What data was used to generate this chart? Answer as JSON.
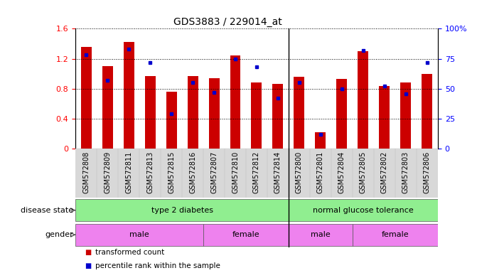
{
  "title": "GDS3883 / 229014_at",
  "samples": [
    "GSM572808",
    "GSM572809",
    "GSM572811",
    "GSM572813",
    "GSM572815",
    "GSM572816",
    "GSM572807",
    "GSM572810",
    "GSM572812",
    "GSM572814",
    "GSM572800",
    "GSM572801",
    "GSM572804",
    "GSM572805",
    "GSM572802",
    "GSM572803",
    "GSM572806"
  ],
  "red_values": [
    1.36,
    1.1,
    1.42,
    0.97,
    0.76,
    0.97,
    0.94,
    1.24,
    0.88,
    0.86,
    0.96,
    0.22,
    0.93,
    1.3,
    0.84,
    0.88,
    1.0
  ],
  "blue_values_pct": [
    78,
    57,
    83,
    72,
    29,
    55,
    47,
    75,
    68,
    42,
    55,
    12,
    50,
    82,
    52,
    46,
    72
  ],
  "ylim_left": [
    0,
    1.6
  ],
  "ylim_right": [
    0,
    100
  ],
  "yticks_left": [
    0,
    0.4,
    0.8,
    1.2,
    1.6
  ],
  "yticks_left_labels": [
    "0",
    "0.4",
    "0.8",
    "1.2",
    "1.6"
  ],
  "yticks_right": [
    0,
    25,
    50,
    75,
    100
  ],
  "yticks_right_labels": [
    "0",
    "25",
    "50",
    "75",
    "100%"
  ],
  "bar_color": "#CC0000",
  "dot_color": "#0000CC",
  "xtick_bg": "#d8d8d8",
  "disease_color": "#90EE90",
  "gender_color": "#EE82EE",
  "legend_items": [
    "transformed count",
    "percentile rank within the sample"
  ],
  "disease_label": "disease state",
  "gender_label": "gender",
  "separator_idx": 10,
  "disease_groups": [
    {
      "label": "type 2 diabetes",
      "start": 0,
      "end": 10
    },
    {
      "label": "normal glucose tolerance",
      "start": 10,
      "end": 17
    }
  ],
  "gender_groups": [
    {
      "label": "male",
      "start": 0,
      "end": 6
    },
    {
      "label": "female",
      "start": 6,
      "end": 10
    },
    {
      "label": "male",
      "start": 10,
      "end": 13
    },
    {
      "label": "female",
      "start": 13,
      "end": 17
    }
  ]
}
